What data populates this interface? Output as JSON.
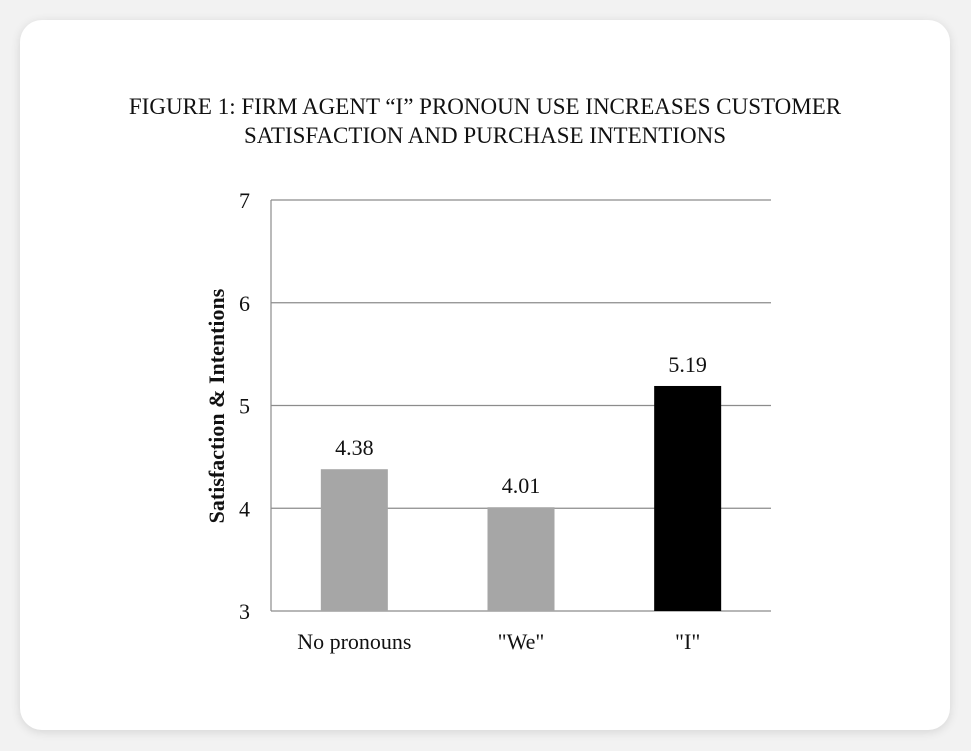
{
  "figure": {
    "title_line1": "FIGURE 1: FIRM AGENT “I” PRONOUN USE INCREASES CUSTOMER",
    "title_line2": "SATISFACTION AND PURCHASE INTENTIONS"
  },
  "chart_data": {
    "type": "bar",
    "title": "FIGURE 1: FIRM AGENT “I” PRONOUN USE INCREASES CUSTOMER SATISFACTION AND PURCHASE INTENTIONS",
    "xlabel": "",
    "ylabel": "Satisfaction & Intentions",
    "ylim": [
      3,
      7
    ],
    "yticks": [
      "3",
      "4",
      "5",
      "6",
      "7"
    ],
    "grid": true,
    "legend": "none",
    "categories": [
      "No pronouns",
      "\"We\"",
      "\"I\""
    ],
    "values": [
      4.38,
      4.01,
      5.19
    ],
    "data_labels": [
      "4.38",
      "4.01",
      "5.19"
    ],
    "bar_colors": [
      "#a6a6a6",
      "#a6a6a6",
      "#000000"
    ]
  }
}
